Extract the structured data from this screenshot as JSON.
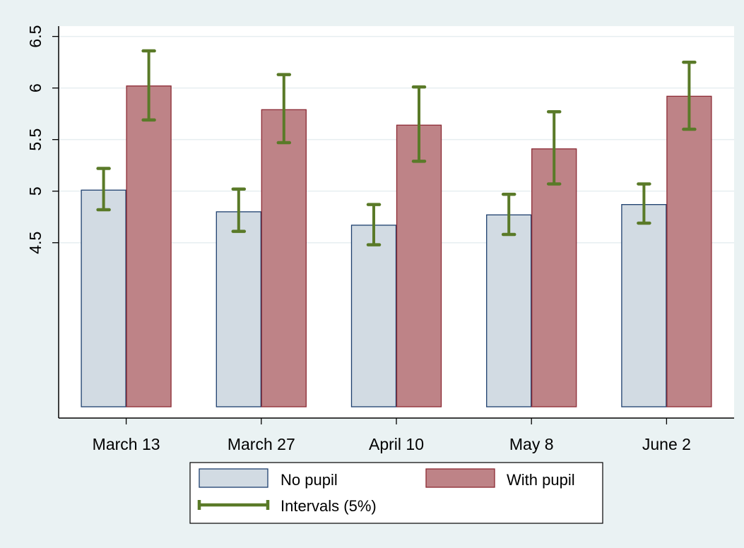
{
  "chart_data": {
    "type": "bar",
    "categories": [
      "March 13",
      "March 27",
      "April 10",
      "May 8",
      "June 2"
    ],
    "series": [
      {
        "name": "No pupil",
        "color": "#d2dbe3",
        "border": "#1d3f6e",
        "values": [
          5.01,
          4.8,
          4.67,
          4.77,
          4.87
        ],
        "ci_low": [
          4.82,
          4.61,
          4.48,
          4.58,
          4.69
        ],
        "ci_high": [
          5.22,
          5.02,
          4.87,
          4.97,
          5.07
        ]
      },
      {
        "name": "With pupil",
        "color": "#be8387",
        "border": "#8c2a34",
        "values": [
          6.02,
          5.79,
          5.64,
          5.41,
          5.92
        ],
        "ci_low": [
          5.69,
          5.47,
          5.29,
          5.07,
          5.6
        ],
        "ci_high": [
          6.36,
          6.13,
          6.01,
          5.77,
          6.25
        ]
      }
    ],
    "interval_label": "Intervals (5%)",
    "interval_color": "#5a7a28",
    "yticks": [
      "4.5",
      "5",
      "5.5",
      "6",
      "6.5"
    ],
    "ytick_values": [
      4.5,
      5,
      5.5,
      6,
      6.5
    ],
    "ylim": [
      2.8,
      6.6
    ],
    "grid": true,
    "legend_position": "bottom",
    "title": "",
    "xlabel": "",
    "ylabel": ""
  }
}
